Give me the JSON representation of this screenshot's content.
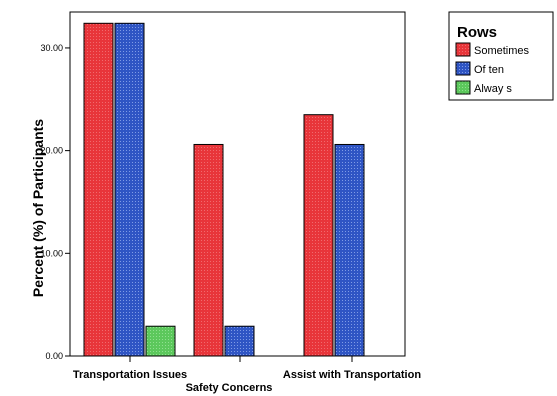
{
  "chart_data": {
    "type": "bar",
    "xlabel": "Safety Concerns",
    "ylabel": "Percent (%) of Participants",
    "categories": [
      "Transportation Issues",
      "",
      "Assist with Transportation"
    ],
    "series": [
      {
        "name": "Sometimes",
        "color": "#e8353a",
        "values": [
          32.4,
          20.6,
          23.5
        ]
      },
      {
        "name": "Often",
        "color": "#2f55c4",
        "values": [
          32.4,
          2.9,
          20.6
        ]
      },
      {
        "name": "Always",
        "color": "#5cc85c",
        "values": [
          2.9,
          0,
          0
        ]
      }
    ],
    "yticks": [
      "0.00",
      "10.00",
      "20.00",
      "30.00"
    ],
    "ylim": [
      0,
      33.5
    ],
    "grid": false,
    "legend": {
      "title": "Rows",
      "placement": "top-right",
      "labels": [
        "Sometimes",
        "Of ten",
        "Alway s"
      ]
    }
  }
}
